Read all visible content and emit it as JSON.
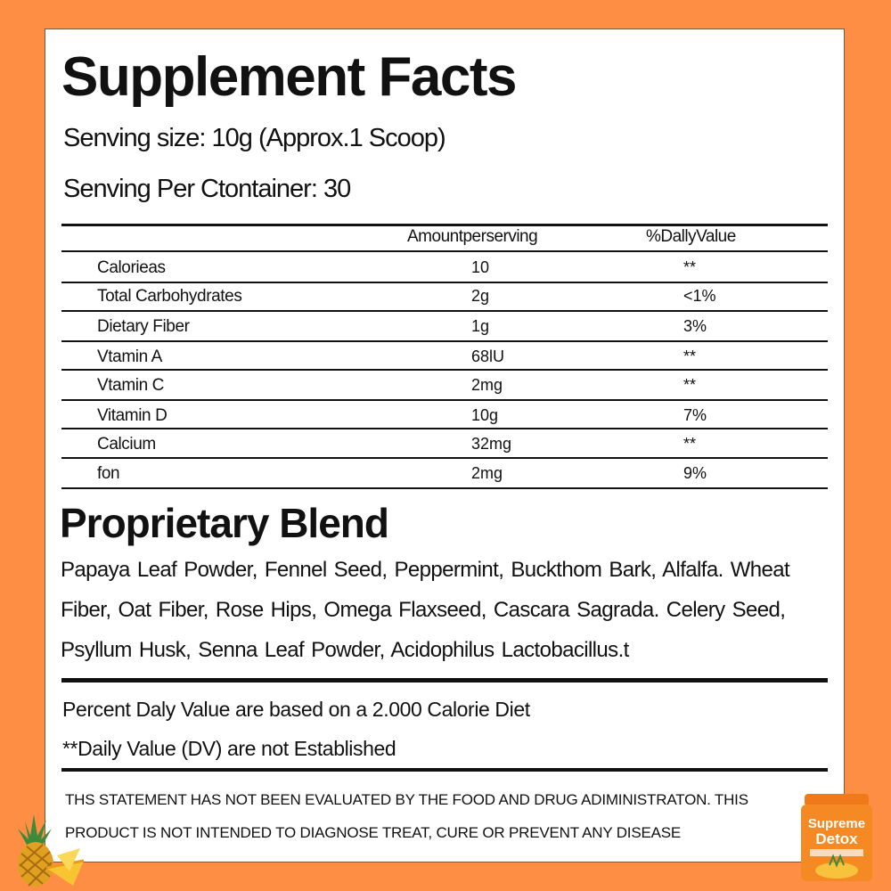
{
  "title": "Supplement Facts",
  "serving_size": "Senving size: 10g (Approx.1 Scoop)",
  "servings_per_container": "Senving Per Ctontainer: 30",
  "columns": {
    "amount": "Amountperserving",
    "daily_value": "%DallyValue"
  },
  "nutrients": [
    {
      "name": "Calorieas",
      "amount": "10",
      "dv": "**"
    },
    {
      "name": "Total Carbohydrates",
      "amount": "2g",
      "dv": "<1%"
    },
    {
      "name": "Dietary Fiber",
      "amount": "1g",
      "dv": "3%"
    },
    {
      "name": "Vtamin A",
      "amount": "68lU",
      "dv": "**"
    },
    {
      "name": "Vtamin C",
      "amount": "2mg",
      "dv": "**"
    },
    {
      "name": "Vitamin D",
      "amount": "10g",
      "dv": "7%"
    },
    {
      "name": "Calcium",
      "amount": "32mg",
      "dv": "**"
    },
    {
      "name": "fon",
      "amount": "2mg",
      "dv": "9%"
    }
  ],
  "blend_title": "Proprietary Blend",
  "blend_ingredients": "Papaya Leaf Powder, Fennel Seed, Peppermint, Buckthom Bark, Alfalfa. Wheat Fiber, Oat Fiber, Rose Hips, Omega Flaxseed, Cascara Sagrada. Celery Seed, Psyllum Husk, Senna Leaf Powder, Acidophilus Lactobacillus.t",
  "note_daily_value": "Percent Daly Value are based on a 2.000 Calorie Diet",
  "note_not_established": "**Daily Value (DV) are not Established",
  "disclaimer": "THS STATEMENT HAS NOT BEEN EVALUATED BY THE FOOD AND DRUG ADIMINISTRATON. THIS PRODUCT IS NOT INTENDED TO DIAGNOSE TREAT, CURE OR PREVENT ANY DISEASE",
  "product_label": {
    "line1": "Supreme",
    "line2": "Detox"
  },
  "colors": {
    "background": "#FF8E45",
    "panel": "#FFFFFF",
    "text": "#111111"
  },
  "icons": [
    "pineapple-icon",
    "product-jar-icon"
  ]
}
